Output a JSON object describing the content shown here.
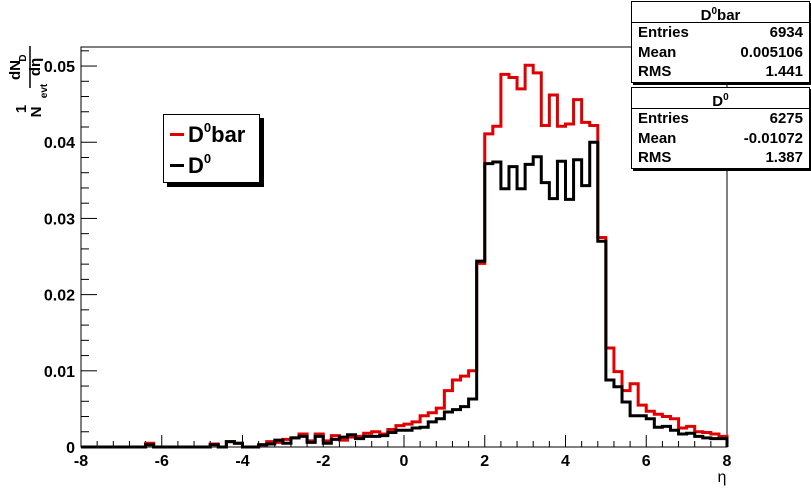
{
  "chart_data": {
    "type": "histogram",
    "xlabel": "η",
    "ylabel": {
      "prefix": "1",
      "numerator": "dN",
      "numerator_sub": "D",
      "denominator": "dη",
      "denominator_prefix": "N",
      "denominator_sub": "evt"
    },
    "xlim": [
      -8,
      8
    ],
    "ylim": [
      0,
      0.0525
    ],
    "x_ticks": [
      "-8",
      "-6",
      "-4",
      "-2",
      "0",
      "2",
      "4",
      "6",
      "8"
    ],
    "y_ticks": [
      "0",
      "0.01",
      "0.02",
      "0.03",
      "0.04",
      "0.05"
    ],
    "bin_edges_range": [
      -8,
      8
    ],
    "bin_count": 80,
    "series": [
      {
        "name": "D0bar",
        "legend_main": "D",
        "legend_sup": "0",
        "legend_suffix": "bar",
        "color": "#e00000",
        "values": [
          0,
          0,
          0,
          0,
          0,
          0,
          0,
          0,
          0.0005,
          0,
          0,
          0,
          0,
          0,
          0,
          0,
          0.0004,
          0,
          0.0007,
          0.0005,
          0,
          0,
          0.0003,
          0.0007,
          0.0006,
          0.001,
          0.0012,
          0.0017,
          0.0008,
          0.0017,
          0.0008,
          0.0015,
          0.0009,
          0.0013,
          0.0014,
          0.0018,
          0.002,
          0.0017,
          0.0023,
          0.0028,
          0.003,
          0.0033,
          0.0041,
          0.0045,
          0.0051,
          0.0074,
          0.0088,
          0.0093,
          0.01,
          0.0241,
          0.0411,
          0.0421,
          0.0489,
          0.0485,
          0.047,
          0.0501,
          0.0491,
          0.0422,
          0.0462,
          0.0421,
          0.0424,
          0.0456,
          0.0426,
          0.0422,
          0.0275,
          0.013,
          0.0099,
          0.0074,
          0.0083,
          0.0055,
          0.0047,
          0.0043,
          0.004,
          0.0037,
          0.0025,
          0.0027,
          0.002,
          0.0019,
          0.0017,
          0.0014
        ]
      },
      {
        "name": "D0",
        "legend_main": "D",
        "legend_sup": "0",
        "legend_suffix": "",
        "color": "#000000",
        "values": [
          0,
          0,
          0,
          0,
          0,
          0,
          0,
          0,
          0.0003,
          0,
          0,
          0,
          0,
          0,
          0,
          0,
          0.0003,
          0,
          0.0007,
          0.0005,
          0,
          0,
          0.0003,
          0.0004,
          0.0009,
          0.0005,
          0.0012,
          0.0014,
          0.0006,
          0.0014,
          0.0005,
          0.001,
          0.0013,
          0.0016,
          0.0011,
          0.0014,
          0.0014,
          0.0015,
          0.0019,
          0.0022,
          0.0022,
          0.0025,
          0.0026,
          0.0033,
          0.0037,
          0.0046,
          0.0049,
          0.0053,
          0.0063,
          0.0244,
          0.0372,
          0.0374,
          0.0339,
          0.0368,
          0.0339,
          0.0371,
          0.0381,
          0.0347,
          0.0326,
          0.0375,
          0.0325,
          0.0377,
          0.0343,
          0.04,
          0.027,
          0.0088,
          0.0079,
          0.0059,
          0.0041,
          0.0041,
          0.0037,
          0.0026,
          0.0027,
          0.0022,
          0.0017,
          0.0018,
          0.0014,
          0.0012,
          0.0011,
          0.0011
        ]
      }
    ]
  },
  "stats_boxes": [
    {
      "id": "d0bar",
      "title_main": "D",
      "title_sup": "0",
      "title_suffix": "bar",
      "entries_label": "Entries",
      "entries": "6934",
      "mean_label": "Mean",
      "mean": "0.005106",
      "rms_label": "RMS",
      "rms": "1.441"
    },
    {
      "id": "d0",
      "title_main": "D",
      "title_sup": "0",
      "title_suffix": "",
      "entries_label": "Entries",
      "entries": "6275",
      "mean_label": "Mean",
      "mean": "-0.01072",
      "rms_label": "RMS",
      "rms": "1.387"
    }
  ]
}
